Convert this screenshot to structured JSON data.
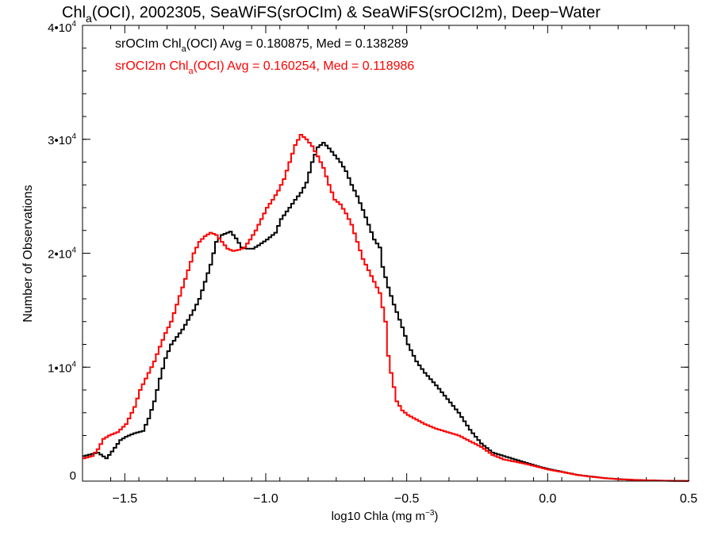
{
  "chart_data": {
    "type": "line",
    "title": {
      "pre": "Chl",
      "sub": "a",
      "post": "(OCI), 2002305, SeaWiFS(srOCIm) & SeaWiFS(srOCI2m), Deep−Water"
    },
    "xlabel": {
      "pre": "log10 Chla (mg m",
      "sup": "−3",
      "post": ")"
    },
    "ylabel": "Number of Observations",
    "xlim": [
      -1.65,
      0.5
    ],
    "ylim": [
      0,
      40000
    ],
    "x_ticks": [
      {
        "value": -1.5,
        "label": "−1.5"
      },
      {
        "value": -1.0,
        "label": "−1.0"
      },
      {
        "value": -0.5,
        "label": "−0.5"
      },
      {
        "value": 0.0,
        "label": "0.0"
      },
      {
        "value": 0.5,
        "label": "0.5"
      }
    ],
    "y_ticks": [
      {
        "value": 0,
        "base": "0",
        "exp": ""
      },
      {
        "value": 10000,
        "base": "1•10",
        "exp": "4"
      },
      {
        "value": 20000,
        "base": "2•10",
        "exp": "4"
      },
      {
        "value": 30000,
        "base": "3•10",
        "exp": "4"
      },
      {
        "value": 40000,
        "base": "4•10",
        "exp": "4"
      }
    ],
    "x_minor_step": 0.1,
    "y_minor_step": 2000,
    "grid": false,
    "legend": [
      {
        "pre": "srOCIm Chl",
        "sub": "a",
        "post": "(OCI) Avg = 0.180875, Med = 0.138289",
        "color": "#000000"
      },
      {
        "pre": "srOCI2m Chl",
        "sub": "a",
        "post": "(OCI) Avg = 0.160254, Med = 0.118986",
        "color": "#ff0000"
      }
    ],
    "legend_position": "top-left",
    "series": [
      {
        "name": "srOCIm",
        "color": "#000000",
        "points": [
          [
            -1.65,
            2200
          ],
          [
            -1.6,
            2500
          ],
          [
            -1.57,
            2000
          ],
          [
            -1.55,
            2600
          ],
          [
            -1.52,
            3600
          ],
          [
            -1.5,
            3900
          ],
          [
            -1.47,
            4200
          ],
          [
            -1.44,
            4400
          ],
          [
            -1.42,
            5500
          ],
          [
            -1.4,
            7000
          ],
          [
            -1.38,
            9000
          ],
          [
            -1.36,
            10800
          ],
          [
            -1.34,
            12000
          ],
          [
            -1.3,
            13300
          ],
          [
            -1.26,
            15000
          ],
          [
            -1.24,
            16000
          ],
          [
            -1.22,
            17500
          ],
          [
            -1.2,
            19000
          ],
          [
            -1.18,
            21000
          ],
          [
            -1.16,
            21600
          ],
          [
            -1.13,
            21900
          ],
          [
            -1.11,
            21300
          ],
          [
            -1.09,
            20500
          ],
          [
            -1.07,
            20400
          ],
          [
            -1.05,
            20400
          ],
          [
            -1.03,
            20700
          ],
          [
            -1.0,
            21200
          ],
          [
            -0.97,
            21800
          ],
          [
            -0.95,
            23000
          ],
          [
            -0.92,
            24000
          ],
          [
            -0.9,
            24700
          ],
          [
            -0.88,
            25300
          ],
          [
            -0.86,
            26200
          ],
          [
            -0.84,
            28000
          ],
          [
            -0.82,
            29300
          ],
          [
            -0.8,
            29700
          ],
          [
            -0.78,
            29200
          ],
          [
            -0.76,
            28600
          ],
          [
            -0.74,
            28000
          ],
          [
            -0.72,
            27200
          ],
          [
            -0.7,
            26000
          ],
          [
            -0.68,
            25000
          ],
          [
            -0.66,
            23800
          ],
          [
            -0.64,
            22500
          ],
          [
            -0.62,
            21200
          ],
          [
            -0.6,
            20500
          ],
          [
            -0.59,
            18800
          ],
          [
            -0.57,
            17000
          ],
          [
            -0.55,
            15500
          ],
          [
            -0.52,
            13500
          ],
          [
            -0.5,
            12000
          ],
          [
            -0.47,
            10500
          ],
          [
            -0.44,
            9500
          ],
          [
            -0.4,
            8400
          ],
          [
            -0.36,
            7200
          ],
          [
            -0.32,
            6000
          ],
          [
            -0.28,
            4500
          ],
          [
            -0.24,
            3300
          ],
          [
            -0.2,
            2500
          ],
          [
            -0.16,
            2200
          ],
          [
            -0.12,
            1900
          ],
          [
            -0.08,
            1600
          ],
          [
            -0.04,
            1300
          ],
          [
            0.0,
            1050
          ],
          [
            0.05,
            800
          ],
          [
            0.1,
            550
          ],
          [
            0.15,
            400
          ],
          [
            0.2,
            260
          ],
          [
            0.25,
            170
          ],
          [
            0.3,
            110
          ],
          [
            0.35,
            70
          ],
          [
            0.4,
            40
          ],
          [
            0.45,
            20
          ],
          [
            0.5,
            10
          ]
        ]
      },
      {
        "name": "srOCI2m",
        "color": "#ff0000",
        "points": [
          [
            -1.65,
            2000
          ],
          [
            -1.62,
            2200
          ],
          [
            -1.6,
            2800
          ],
          [
            -1.58,
            3700
          ],
          [
            -1.56,
            4000
          ],
          [
            -1.53,
            4300
          ],
          [
            -1.5,
            5000
          ],
          [
            -1.47,
            6500
          ],
          [
            -1.45,
            8000
          ],
          [
            -1.42,
            9500
          ],
          [
            -1.4,
            10500
          ],
          [
            -1.38,
            11800
          ],
          [
            -1.36,
            13000
          ],
          [
            -1.34,
            14000
          ],
          [
            -1.32,
            15500
          ],
          [
            -1.3,
            17000
          ],
          [
            -1.28,
            18500
          ],
          [
            -1.26,
            20000
          ],
          [
            -1.24,
            21000
          ],
          [
            -1.22,
            21500
          ],
          [
            -1.2,
            21800
          ],
          [
            -1.18,
            21600
          ],
          [
            -1.16,
            21000
          ],
          [
            -1.14,
            20400
          ],
          [
            -1.12,
            20200
          ],
          [
            -1.1,
            20300
          ],
          [
            -1.08,
            20500
          ],
          [
            -1.06,
            21200
          ],
          [
            -1.04,
            22000
          ],
          [
            -1.02,
            23000
          ],
          [
            -1.0,
            24000
          ],
          [
            -0.98,
            24700
          ],
          [
            -0.96,
            25500
          ],
          [
            -0.94,
            26500
          ],
          [
            -0.92,
            28000
          ],
          [
            -0.9,
            29500
          ],
          [
            -0.88,
            30400
          ],
          [
            -0.86,
            30000
          ],
          [
            -0.84,
            29400
          ],
          [
            -0.82,
            28500
          ],
          [
            -0.8,
            27500
          ],
          [
            -0.78,
            26000
          ],
          [
            -0.76,
            24700
          ],
          [
            -0.74,
            24300
          ],
          [
            -0.72,
            23500
          ],
          [
            -0.7,
            22500
          ],
          [
            -0.68,
            21000
          ],
          [
            -0.66,
            19500
          ],
          [
            -0.64,
            18500
          ],
          [
            -0.62,
            17500
          ],
          [
            -0.6,
            16500
          ],
          [
            -0.58,
            14000
          ],
          [
            -0.57,
            11000
          ],
          [
            -0.56,
            9500
          ],
          [
            -0.54,
            7000
          ],
          [
            -0.52,
            6200
          ],
          [
            -0.5,
            5800
          ],
          [
            -0.47,
            5400
          ],
          [
            -0.44,
            5000
          ],
          [
            -0.4,
            4600
          ],
          [
            -0.36,
            4300
          ],
          [
            -0.32,
            4000
          ],
          [
            -0.28,
            3500
          ],
          [
            -0.24,
            3000
          ],
          [
            -0.2,
            2300
          ],
          [
            -0.16,
            1900
          ],
          [
            -0.12,
            1700
          ],
          [
            -0.08,
            1500
          ],
          [
            -0.04,
            1250
          ],
          [
            0.0,
            1000
          ],
          [
            0.05,
            780
          ],
          [
            0.1,
            540
          ],
          [
            0.15,
            380
          ],
          [
            0.2,
            250
          ],
          [
            0.25,
            160
          ],
          [
            0.3,
            100
          ],
          [
            0.35,
            65
          ],
          [
            0.4,
            35
          ],
          [
            0.45,
            18
          ],
          [
            0.5,
            8
          ]
        ]
      }
    ]
  }
}
